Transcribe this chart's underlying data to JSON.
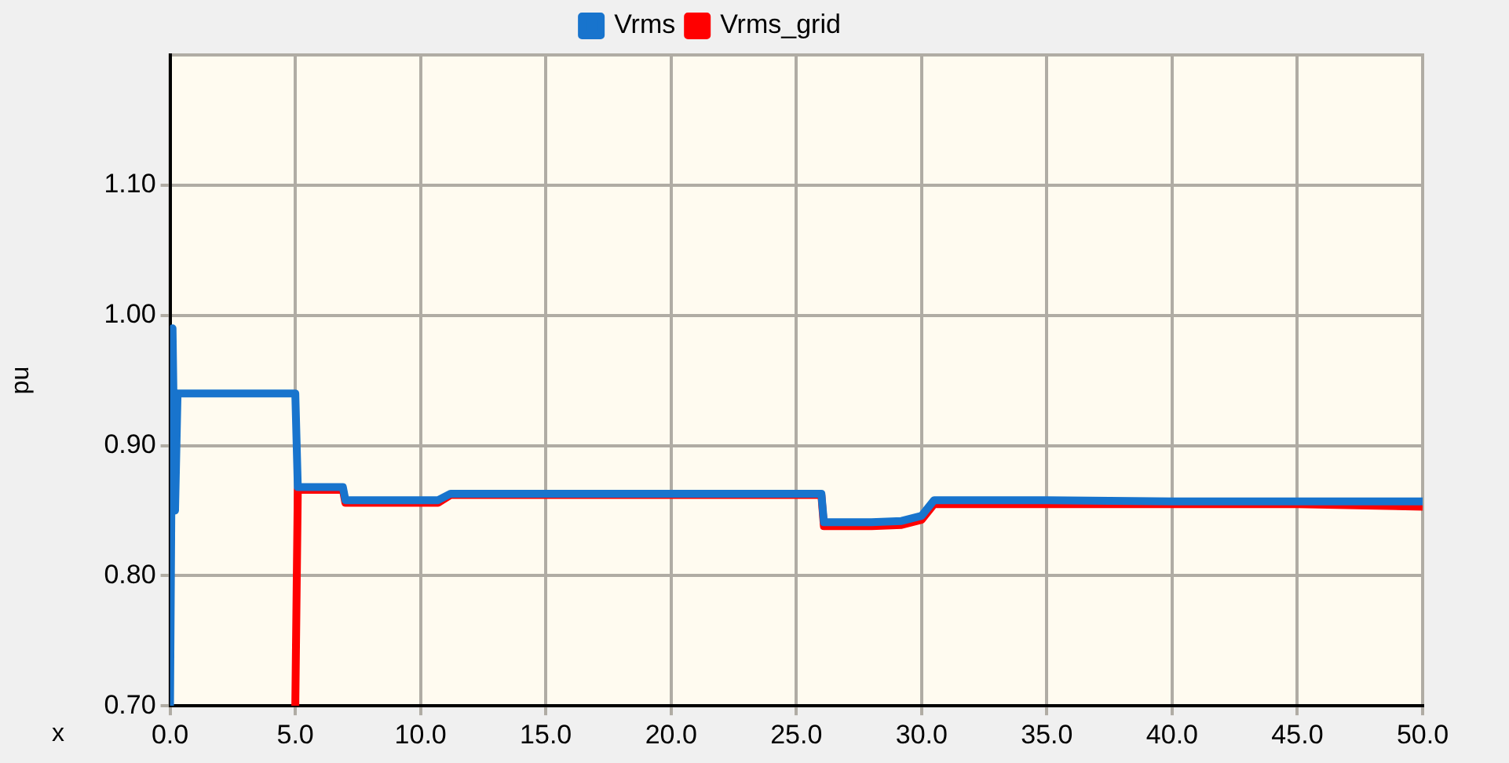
{
  "chart_data": {
    "type": "line",
    "xlabel": "x",
    "ylabel": "pu",
    "x": [
      0,
      0.1,
      0.2,
      0.3,
      0.5,
      2,
      4.9,
      5,
      5.1,
      6.9,
      7,
      7.2,
      10.7,
      11.2,
      15,
      20,
      25.9,
      26,
      26.1,
      28,
      29.2,
      30,
      30.5,
      35,
      40,
      45,
      50
    ],
    "series": [
      {
        "name": "Vrms",
        "color": "#1874cd",
        "values": [
          0.7,
          0.99,
          0.85,
          0.94,
          0.94,
          0.94,
          0.94,
          0.94,
          0.868,
          0.868,
          0.858,
          0.858,
          0.858,
          0.863,
          0.863,
          0.863,
          0.863,
          0.863,
          0.841,
          0.841,
          0.842,
          0.846,
          0.858,
          0.858,
          0.857,
          0.857,
          0.857
        ]
      },
      {
        "name": "Vrms_grid",
        "color": "#ff0000",
        "values": [
          null,
          null,
          null,
          null,
          null,
          null,
          null,
          0.7,
          0.866,
          0.866,
          0.856,
          0.856,
          0.856,
          0.862,
          0.862,
          0.862,
          0.862,
          0.862,
          0.838,
          0.838,
          0.839,
          0.843,
          0.855,
          0.855,
          0.855,
          0.855,
          0.853
        ]
      }
    ],
    "xlim": [
      0,
      50
    ],
    "xticks": [
      {
        "value": 0,
        "label": "0.0"
      },
      {
        "value": 5,
        "label": "5.0"
      },
      {
        "value": 10,
        "label": "10.0"
      },
      {
        "value": 15,
        "label": "15.0"
      },
      {
        "value": 20,
        "label": "20.0"
      },
      {
        "value": 25,
        "label": "25.0"
      },
      {
        "value": 30,
        "label": "30.0"
      },
      {
        "value": 35,
        "label": "35.0"
      },
      {
        "value": 40,
        "label": "40.0"
      },
      {
        "value": 45,
        "label": "45.0"
      },
      {
        "value": 50,
        "label": "50.0"
      }
    ],
    "ylim": [
      0.7,
      1.2
    ],
    "yticks": [
      {
        "value": 0.7,
        "label": "0.70"
      },
      {
        "value": 0.8,
        "label": "0.80"
      },
      {
        "value": 0.9,
        "label": "0.90"
      },
      {
        "value": 1.0,
        "label": "1.00"
      },
      {
        "value": 1.1,
        "label": "1.10"
      }
    ],
    "grid": true,
    "legend": "top",
    "line_style": "solid"
  }
}
